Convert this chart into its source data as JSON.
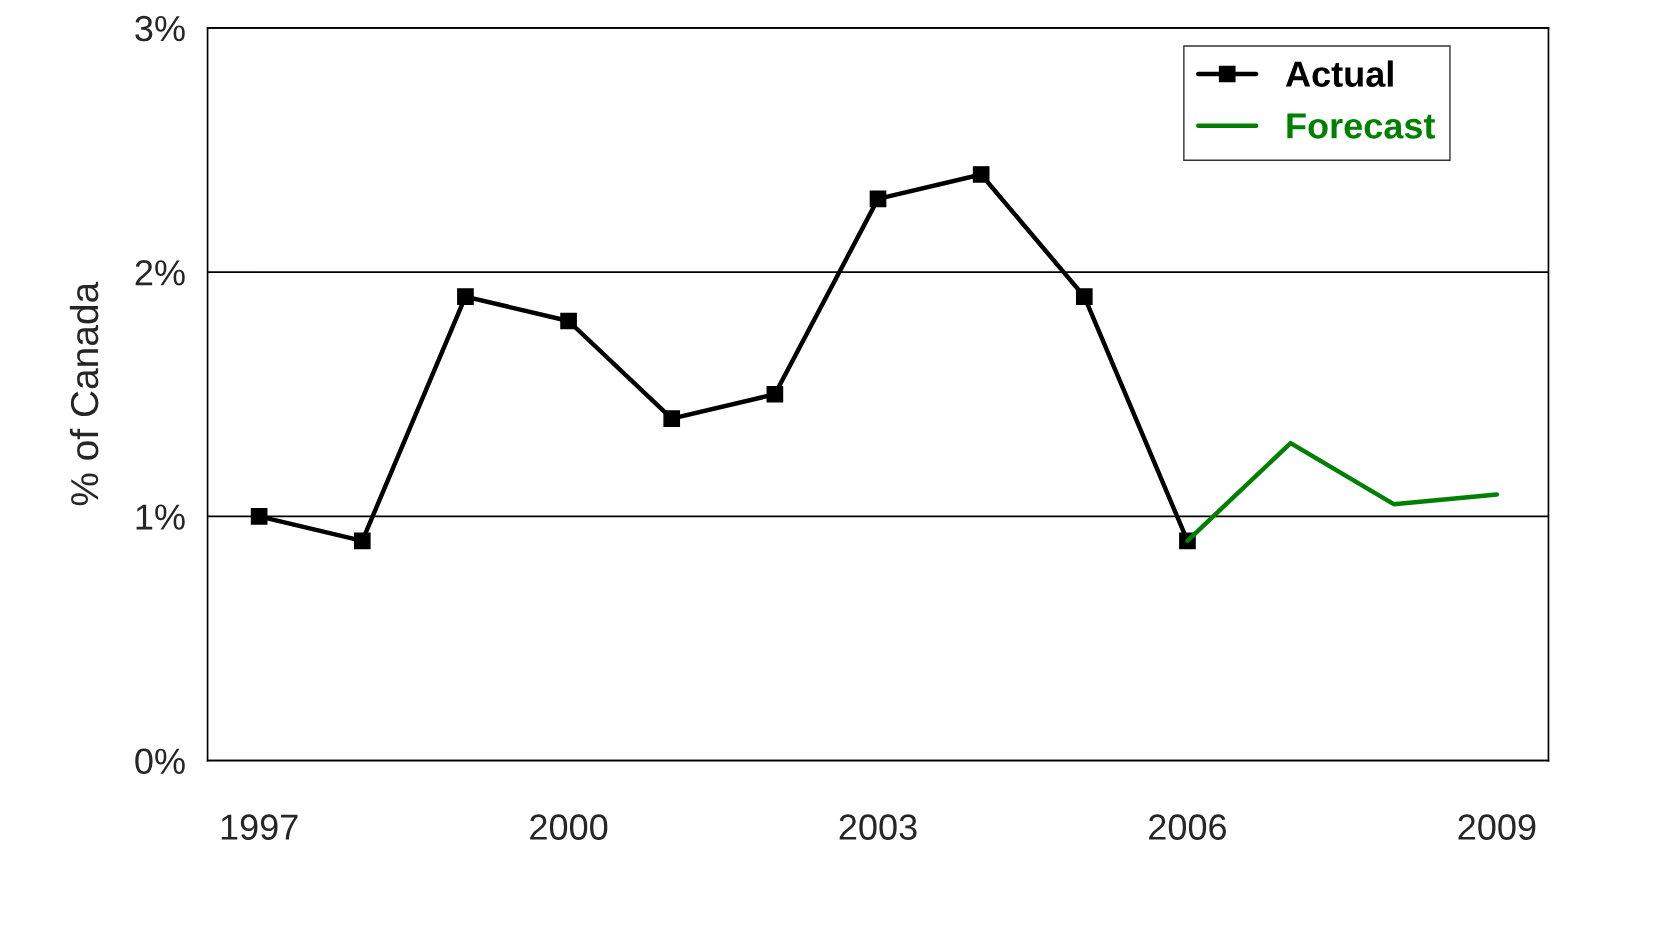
{
  "chart_data": {
    "type": "line",
    "ylabel": "% of Canada",
    "categories": [
      "1997",
      null,
      null,
      "2000",
      null,
      null,
      "2003",
      null,
      null,
      "2006",
      null,
      null,
      "2009"
    ],
    "series": [
      {
        "name": "Actual",
        "color": "#000000",
        "marker": "square",
        "values": [
          1.0,
          0.9,
          1.9,
          1.8,
          1.4,
          1.5,
          2.3,
          2.4,
          1.9,
          0.9,
          null,
          null,
          null
        ]
      },
      {
        "name": "Forecast",
        "color": "#008000",
        "marker": "none",
        "values": [
          null,
          null,
          null,
          null,
          null,
          null,
          null,
          null,
          null,
          0.9,
          1.3,
          1.05,
          1.09
        ]
      }
    ],
    "ylim": [
      0,
      3
    ],
    "yticks": [
      {
        "value": 0,
        "label": "0%"
      },
      {
        "value": 1,
        "label": "1%"
      },
      {
        "value": 2,
        "label": "2%"
      },
      {
        "value": 3,
        "label": "3%"
      }
    ],
    "grid": "y",
    "legend": "top right",
    "line_style": "solid"
  }
}
